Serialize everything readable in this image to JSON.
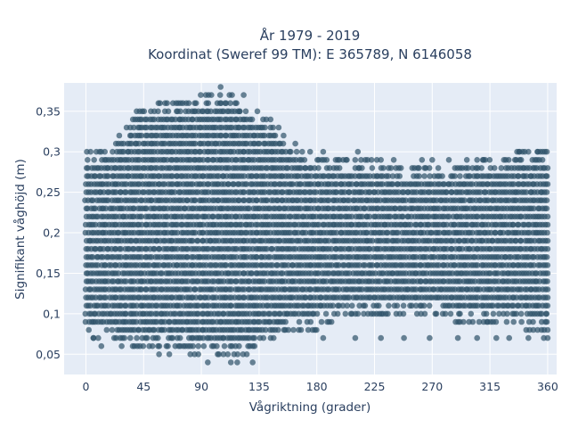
{
  "chart_data": {
    "type": "scatter",
    "title": "År 1979 - 2019",
    "subtitle": "Koordinat (Sweref 99 TM): E 365789, N 6146058",
    "xlabel": "Vågriktning (grader)",
    "ylabel": "Signifikant våghöjd (m)",
    "xlim": [
      -17,
      367
    ],
    "ylim": [
      0.025,
      0.385
    ],
    "x_ticks": [
      0,
      45,
      90,
      135,
      180,
      225,
      270,
      315,
      360
    ],
    "x_tick_labels": [
      "0",
      "45",
      "90",
      "135",
      "180",
      "225",
      "270",
      "315",
      "360"
    ],
    "y_ticks": [
      0.05,
      0.1,
      0.15,
      0.2,
      0.25,
      0.3,
      0.35
    ],
    "y_tick_labels": [
      "0,05",
      "0,1",
      "0,15",
      "0,2",
      "0,25",
      "0,3",
      "0,35"
    ],
    "grid": true,
    "plot_background": "#e5ecf6",
    "marker_color": "#2f5369",
    "marker_opacity": 0.7,
    "y_quantization_step": 0.01,
    "envelope": [
      [
        0,
        0.08,
        0.3
      ],
      [
        10,
        0.07,
        0.3
      ],
      [
        20,
        0.07,
        0.31
      ],
      [
        30,
        0.06,
        0.33
      ],
      [
        40,
        0.06,
        0.35
      ],
      [
        45,
        0.06,
        0.36
      ],
      [
        55,
        0.06,
        0.36
      ],
      [
        65,
        0.06,
        0.36
      ],
      [
        75,
        0.06,
        0.36
      ],
      [
        85,
        0.05,
        0.37
      ],
      [
        95,
        0.05,
        0.37
      ],
      [
        105,
        0.05,
        0.37
      ],
      [
        115,
        0.05,
        0.37
      ],
      [
        125,
        0.05,
        0.36
      ],
      [
        135,
        0.06,
        0.35
      ],
      [
        145,
        0.07,
        0.34
      ],
      [
        155,
        0.08,
        0.32
      ],
      [
        165,
        0.08,
        0.31
      ],
      [
        175,
        0.08,
        0.3
      ],
      [
        185,
        0.09,
        0.29
      ],
      [
        200,
        0.1,
        0.29
      ],
      [
        215,
        0.1,
        0.29
      ],
      [
        230,
        0.1,
        0.29
      ],
      [
        245,
        0.1,
        0.28
      ],
      [
        260,
        0.1,
        0.28
      ],
      [
        275,
        0.1,
        0.28
      ],
      [
        290,
        0.09,
        0.28
      ],
      [
        305,
        0.09,
        0.29
      ],
      [
        320,
        0.09,
        0.29
      ],
      [
        335,
        0.09,
        0.3
      ],
      [
        350,
        0.08,
        0.3
      ],
      [
        360,
        0.08,
        0.3
      ]
    ],
    "outliers": [
      [
        105,
        0.38
      ],
      [
        123,
        0.37
      ],
      [
        120,
        0.35
      ],
      [
        113,
        0.04
      ],
      [
        118,
        0.04
      ],
      [
        130,
        0.04
      ],
      [
        95,
        0.04
      ],
      [
        57,
        0.05
      ],
      [
        65,
        0.05
      ],
      [
        185,
        0.3
      ],
      [
        212,
        0.3
      ],
      [
        240,
        0.29
      ],
      [
        262,
        0.29
      ],
      [
        270,
        0.29
      ],
      [
        283,
        0.29
      ],
      [
        297,
        0.29
      ],
      [
        305,
        0.29
      ],
      [
        310,
        0.29
      ],
      [
        338,
        0.3
      ],
      [
        345,
        0.3
      ],
      [
        352,
        0.3
      ],
      [
        6,
        0.07
      ],
      [
        12,
        0.06
      ],
      [
        22,
        0.07
      ],
      [
        30,
        0.07
      ],
      [
        185,
        0.07
      ],
      [
        210,
        0.07
      ],
      [
        230,
        0.07
      ],
      [
        248,
        0.07
      ],
      [
        268,
        0.07
      ],
      [
        290,
        0.07
      ],
      [
        305,
        0.07
      ],
      [
        320,
        0.07
      ],
      [
        330,
        0.07
      ],
      [
        345,
        0.07
      ],
      [
        357,
        0.07
      ],
      [
        360,
        0.07
      ],
      [
        265,
        0.28
      ],
      [
        236,
        0.28
      ],
      [
        190,
        0.28
      ]
    ]
  }
}
